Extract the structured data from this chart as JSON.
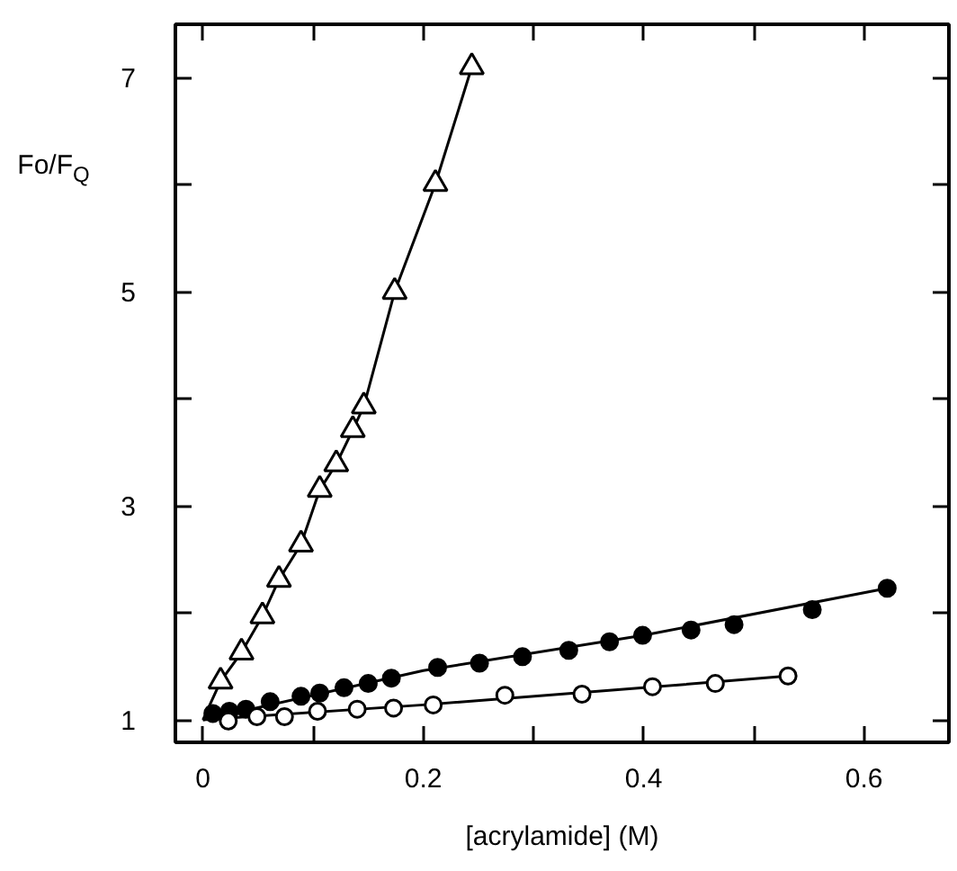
{
  "chart_data": {
    "type": "scatter",
    "xlabel": "[acrylamide] (M)",
    "ylabel": "Fo/F$_{Q}$",
    "xlim": [
      -0.025,
      0.677
    ],
    "ylim": [
      0.79,
      7.5
    ],
    "xticks": [
      0,
      {
        "value": 0.1,
        "label": null
      },
      0.2,
      {
        "value": 0.3,
        "label": null
      },
      0.4,
      {
        "value": 0.5,
        "label": null
      },
      0.6
    ],
    "yticks": [
      1,
      {
        "value": 2,
        "label": null
      },
      3,
      {
        "value": 4,
        "label": null
      },
      5,
      {
        "value": 6,
        "label": null
      },
      7
    ],
    "grid": false,
    "series": [
      {
        "type": "line",
        "color": "#000000",
        "marker": "none",
        "x": [
          0,
          0.016,
          0.035,
          0.054,
          0.069,
          0.089,
          0.106,
          0.121,
          0.136,
          0.146,
          0.174,
          0.211,
          0.244
        ],
        "values": [
          1,
          1.36,
          1.63,
          1.97,
          2.31,
          2.64,
          3.15,
          3.39,
          3.71,
          3.93,
          5.0,
          6.01,
          7.1
        ]
      },
      {
        "type": "line",
        "color": "#000000",
        "marker": "none",
        "x": [
          0,
          0.2,
          0.4,
          0.621
        ],
        "values": [
          1,
          1.46,
          1.79,
          2.23
        ]
      },
      {
        "type": "line",
        "color": "#000000",
        "marker": "none",
        "x": [
          0,
          0.2,
          0.4,
          0.531
        ],
        "values": [
          1,
          1.14,
          1.3,
          1.41
        ]
      },
      {
        "color": "#ffffff",
        "marker": "triangle",
        "x": [
          0.016,
          0.035,
          0.054,
          0.069,
          0.089,
          0.106,
          0.121,
          0.136,
          0.146,
          0.174,
          0.211,
          0.244
        ],
        "values": [
          1.36,
          1.63,
          1.97,
          2.31,
          2.64,
          3.15,
          3.39,
          3.71,
          3.93,
          5.0,
          6.01,
          7.1
        ]
      },
      {
        "color": "#000000",
        "marker": "circle",
        "x": [
          0.009,
          0.024,
          0.039,
          0.061,
          0.089,
          0.106,
          0.128,
          0.15,
          0.171,
          0.213,
          0.251,
          0.29,
          0.332,
          0.369,
          0.399,
          0.443,
          0.482,
          0.553,
          0.621
        ],
        "values": [
          1.06,
          1.08,
          1.1,
          1.17,
          1.22,
          1.25,
          1.3,
          1.34,
          1.39,
          1.49,
          1.53,
          1.59,
          1.65,
          1.73,
          1.79,
          1.84,
          1.89,
          2.03,
          2.23
        ]
      },
      {
        "color": "#ffffff",
        "marker": "circle",
        "x": [
          0.023,
          0.049,
          0.074,
          0.104,
          0.14,
          0.173,
          0.209,
          0.274,
          0.344,
          0.408,
          0.465,
          0.531
        ],
        "values": [
          0.99,
          1.03,
          1.03,
          1.08,
          1.1,
          1.11,
          1.14,
          1.23,
          1.24,
          1.31,
          1.34,
          1.41
        ]
      }
    ]
  }
}
